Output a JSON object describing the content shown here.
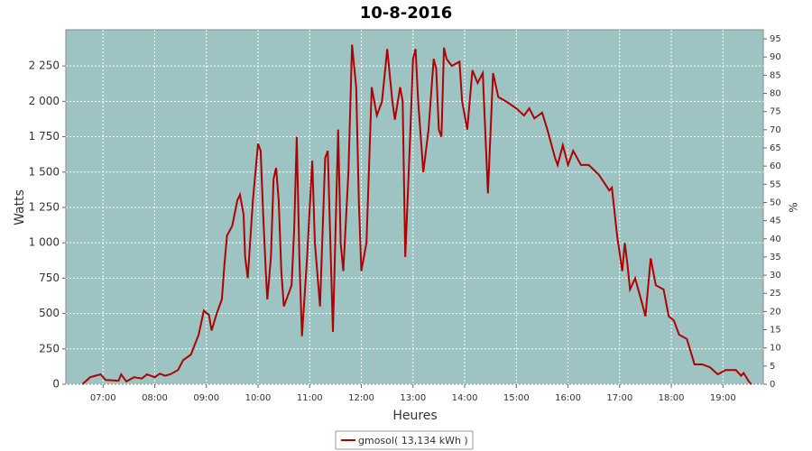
{
  "chart_data": {
    "type": "line",
    "title": "10-8-2016",
    "x_label": "Heures",
    "y_label": "Watts",
    "y2_label": "%",
    "xlim": [
      6.28,
      19.78
    ],
    "xticks": [
      {
        "value": 7,
        "label": "07:00"
      },
      {
        "value": 8,
        "label": "08:00"
      },
      {
        "value": 9,
        "label": "09:00"
      },
      {
        "value": 10,
        "label": "10:00"
      },
      {
        "value": 11,
        "label": "11:00"
      },
      {
        "value": 12,
        "label": "12:00"
      },
      {
        "value": 13,
        "label": "13:00"
      },
      {
        "value": 14,
        "label": "14:00"
      },
      {
        "value": 15,
        "label": "15:00"
      },
      {
        "value": 16,
        "label": "16:00"
      },
      {
        "value": 17,
        "label": "17:00"
      },
      {
        "value": 18,
        "label": "18:00"
      },
      {
        "value": 19,
        "label": "19:00"
      }
    ],
    "ylim": [
      0,
      2506
    ],
    "yticks": [
      0,
      250,
      500,
      750,
      {
        "value": 1000,
        "label": "1 000"
      },
      {
        "value": 1250,
        "label": "1 250"
      },
      {
        "value": 1500,
        "label": "1 500"
      },
      {
        "value": 1750,
        "label": "1 750"
      },
      {
        "value": 2000,
        "label": "2 000"
      },
      {
        "value": 2250,
        "label": "2 250"
      }
    ],
    "y2lim": [
      0,
      97.5
    ],
    "y2ticks": [
      0,
      5,
      10,
      15,
      20,
      25,
      30,
      35,
      40,
      45,
      50,
      55,
      60,
      65,
      70,
      75,
      80,
      85,
      90,
      95
    ],
    "grid": true,
    "legend": "bottom",
    "x": [
      6.6,
      6.75,
      6.85,
      6.95,
      7.05,
      7.3,
      7.35,
      7.45,
      7.6,
      7.75,
      7.85,
      8.0,
      8.1,
      8.2,
      8.3,
      8.45,
      8.55,
      8.7,
      8.85,
      8.95,
      9.05,
      9.1,
      9.2,
      9.3,
      9.35,
      9.4,
      9.5,
      9.6,
      9.65,
      9.72,
      9.75,
      9.8,
      9.9,
      10.0,
      10.05,
      10.1,
      10.15,
      10.18,
      10.25,
      10.3,
      10.35,
      10.4,
      10.45,
      10.5,
      10.6,
      10.65,
      10.7,
      10.75,
      10.8,
      10.85,
      10.95,
      11.05,
      11.1,
      11.2,
      11.3,
      11.35,
      11.45,
      11.55,
      11.6,
      11.65,
      11.75,
      11.82,
      11.9,
      11.95,
      12.0,
      12.1,
      12.2,
      12.3,
      12.4,
      12.5,
      12.6,
      12.65,
      12.75,
      12.8,
      12.85,
      12.95,
      13.0,
      13.05,
      13.1,
      13.2,
      13.3,
      13.4,
      13.45,
      13.5,
      13.55,
      13.6,
      13.65,
      13.75,
      13.9,
      13.95,
      14.05,
      14.15,
      14.25,
      14.35,
      14.45,
      14.55,
      14.65,
      14.8,
      15.0,
      15.15,
      15.25,
      15.35,
      15.5,
      15.6,
      15.75,
      15.8,
      15.9,
      16.0,
      16.1,
      16.25,
      16.4,
      16.6,
      16.8,
      16.85,
      16.95,
      17.05,
      17.1,
      17.15,
      17.2,
      17.3,
      17.45,
      17.5,
      17.6,
      17.7,
      17.85,
      17.95,
      18.05,
      18.15,
      18.3,
      18.45,
      18.6,
      18.75,
      18.9,
      19.05,
      19.25,
      19.35,
      19.4,
      19.5,
      19.55
    ],
    "series": [
      {
        "name": "gmosol( 13,134 kWh )",
        "color": "#b00000",
        "values": [
          0,
          50,
          60,
          70,
          30,
          25,
          70,
          20,
          50,
          40,
          70,
          50,
          75,
          60,
          70,
          100,
          170,
          210,
          350,
          520,
          490,
          380,
          500,
          600,
          850,
          1050,
          1120,
          1300,
          1340,
          1200,
          900,
          750,
          1300,
          1700,
          1650,
          1200,
          800,
          600,
          900,
          1450,
          1530,
          1300,
          800,
          550,
          650,
          700,
          1100,
          1750,
          900,
          340,
          900,
          1580,
          1000,
          550,
          1600,
          1650,
          370,
          1800,
          1000,
          800,
          1500,
          2400,
          2100,
          1300,
          800,
          1000,
          2100,
          1900,
          2000,
          2370,
          2000,
          1870,
          2100,
          2000,
          900,
          1800,
          2300,
          2370,
          2000,
          1500,
          1800,
          2300,
          2230,
          1800,
          1750,
          2380,
          2300,
          2250,
          2280,
          2000,
          1800,
          2220,
          2130,
          2200,
          1350,
          2200,
          2030,
          2000,
          1950,
          1900,
          1950,
          1880,
          1920,
          1800,
          1600,
          1550,
          1690,
          1550,
          1650,
          1550,
          1550,
          1480,
          1370,
          1390,
          1050,
          800,
          1000,
          850,
          670,
          750,
          550,
          480,
          890,
          700,
          670,
          480,
          450,
          350,
          320,
          140,
          140,
          120,
          70,
          100,
          100,
          60,
          80,
          20,
          0
        ]
      }
    ]
  }
}
